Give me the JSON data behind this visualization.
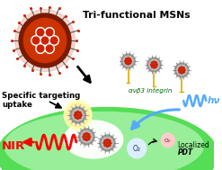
{
  "title": "Tri-functional MSNs",
  "label_targeting": "Specific targeting\nuptake",
  "label_nir": "NIR",
  "label_hv": "hν",
  "label_integrin": "ανβ3 integrin",
  "label_o2": "O₂",
  "label_o2dot": "O₂·",
  "label_pdt": "Localized PDT",
  "bg_color": "#ffffff",
  "cell_green_outer": "#55dd55",
  "cell_green_inner": "#99ee99",
  "nir_color": "#ff0000",
  "hv_color": "#55aaff",
  "msn_outer_dark": "#7a1a00",
  "msn_outer_mid": "#cc3300",
  "msn_inner_bg": "#e8c8c8",
  "msn_pore_white": "#ffffff",
  "msn_pore_red": "#cc2200",
  "msn_spike": "#888888",
  "np_gray_outer": "#999999",
  "np_gray_inner": "#bbbbbb",
  "np_red": "#cc2200",
  "arrow_black": "#111111",
  "yellow_spike": "#ddaa00",
  "endosome_white": "#ffffff",
  "glow_yellow": "#ffffaa",
  "o2_circle": "#ddeeff",
  "o2dot_circle": "#ffcccc"
}
